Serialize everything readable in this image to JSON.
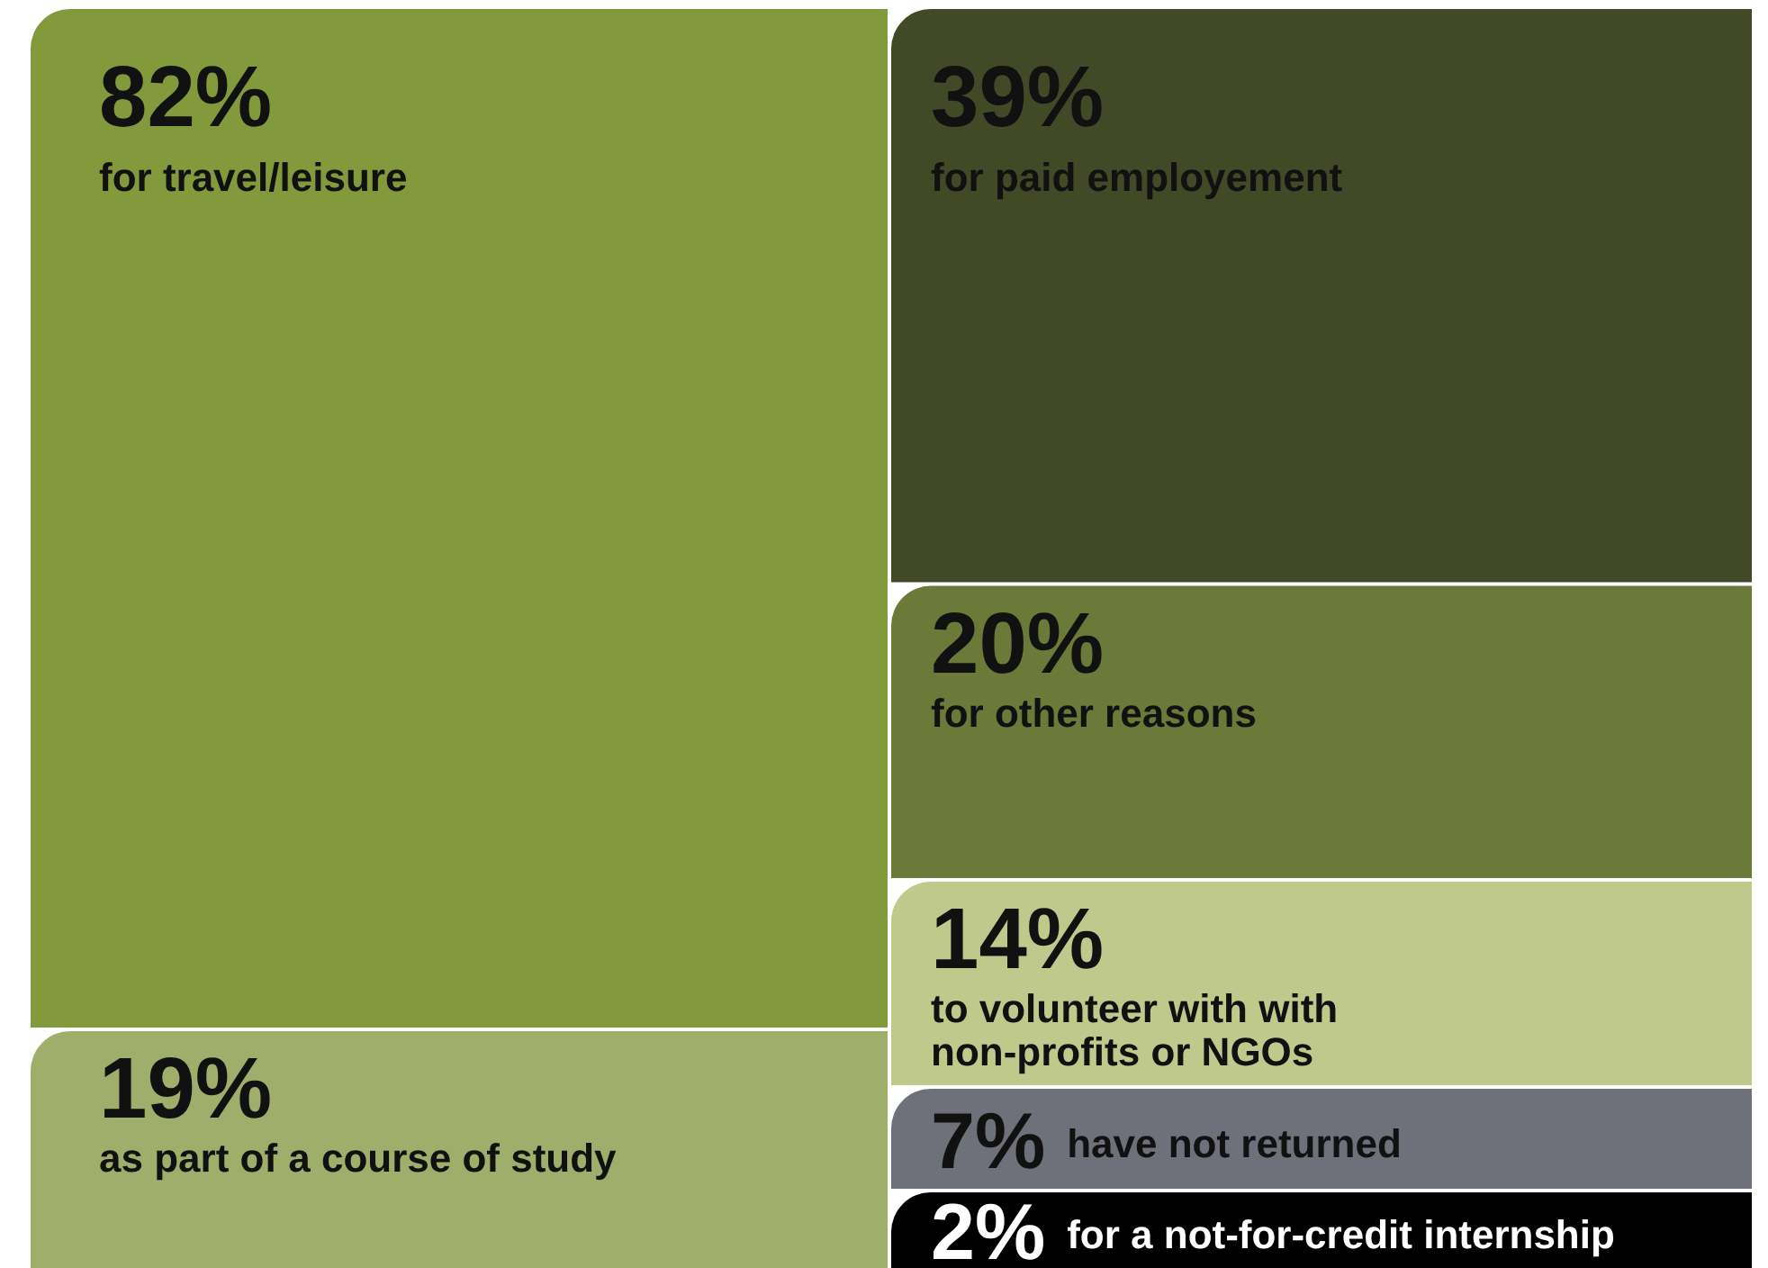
{
  "chart_data": {
    "type": "other",
    "categories": [
      "for travel/leisure",
      "as part of a course of study",
      "for paid employement",
      "for other reasons",
      "to volunteer with with non-profits or NGOs",
      "have not returned",
      "for a not-for-credit internship"
    ],
    "values": [
      82,
      19,
      39,
      20,
      14,
      7,
      2
    ],
    "value_labels": [
      "82%",
      "19%",
      "39%",
      "20%",
      "14%",
      "7%",
      "2%"
    ],
    "colors": [
      "#829a3c",
      "#a0ae6b",
      "#414927",
      "#6b7a38",
      "#bfc98c",
      "#6e717a",
      "#000000"
    ]
  }
}
